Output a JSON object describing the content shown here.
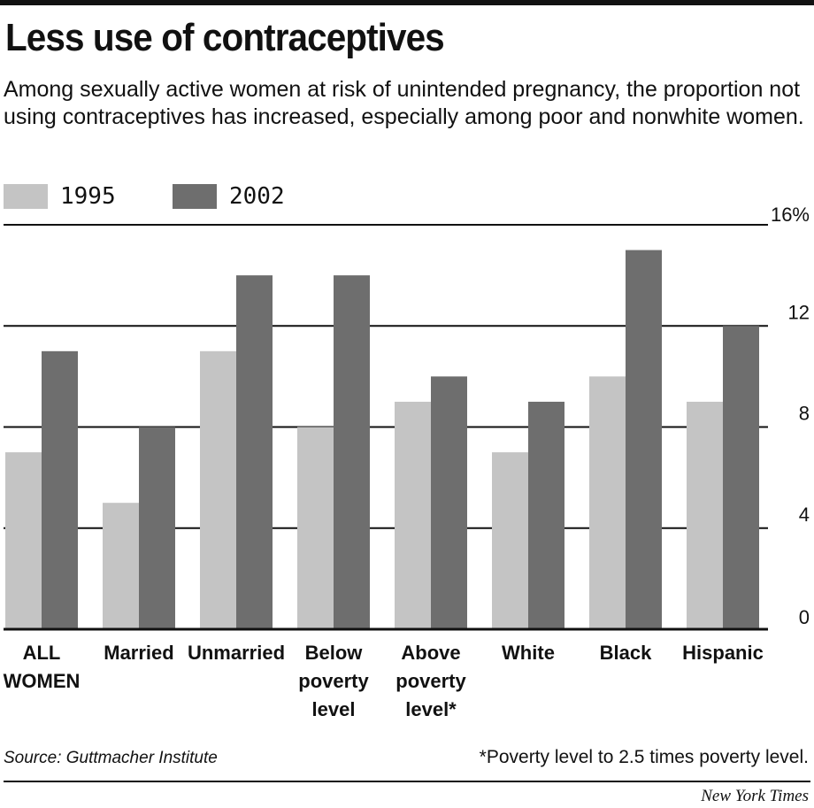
{
  "title": "Less use of contraceptives",
  "subtitle": "Among sexually active women at risk of unintended pregnancy, the proportion not using contraceptives has increased, especially among poor and nonwhite women.",
  "source": "Source: Guttmacher Institute",
  "footnote": "*Poverty level to 2.5 times poverty level.",
  "credit": "New York Times",
  "colors": {
    "series_1995": "#c4c4c4",
    "series_2002": "#6e6e6e",
    "gridline": "#111111"
  },
  "chart_data": {
    "type": "bar",
    "categories": [
      [
        "ALL",
        "WOMEN"
      ],
      [
        "Married"
      ],
      [
        "Unmarried"
      ],
      [
        "Below",
        "poverty",
        "level"
      ],
      [
        "Above",
        "poverty",
        "level*"
      ],
      [
        "White"
      ],
      [
        "Black"
      ],
      [
        "Hispanic"
      ]
    ],
    "series": [
      {
        "name": "1995",
        "values": [
          7,
          5,
          11,
          8,
          9,
          7,
          10,
          9
        ]
      },
      {
        "name": "2002",
        "values": [
          11,
          8,
          14,
          14,
          10,
          9,
          15,
          12
        ]
      }
    ],
    "ylim": [
      0,
      16
    ],
    "yticks": [
      {
        "value": 16,
        "label": "16%"
      },
      {
        "value": 12,
        "label": "12"
      },
      {
        "value": 8,
        "label": "8"
      },
      {
        "value": 4,
        "label": "4"
      },
      {
        "value": 0,
        "label": "0"
      }
    ],
    "grid": true,
    "legend_position": "top-left"
  }
}
